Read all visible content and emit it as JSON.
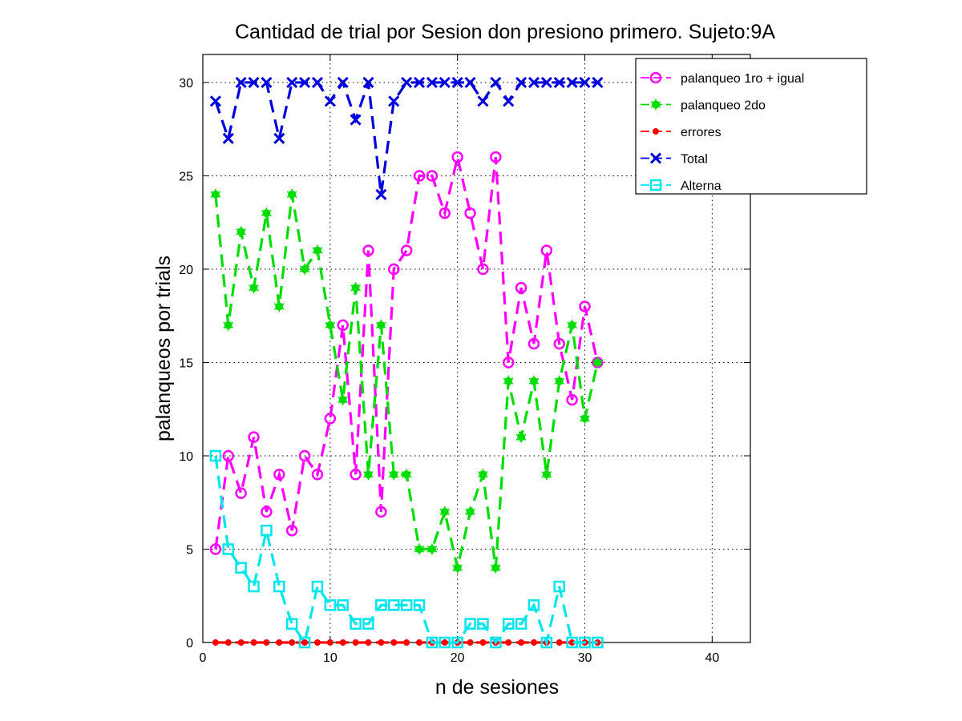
{
  "chart_data": {
    "type": "line",
    "title": "Cantidad de trial por Sesion don presiono primero. Sujeto:9A",
    "xlabel": "n de sesiones",
    "ylabel": "palanqueos por trials",
    "xlim": [
      0,
      43
    ],
    "ylim": [
      0,
      31.5
    ],
    "xticks": [
      0,
      10,
      20,
      30,
      40
    ],
    "yticks": [
      0,
      5,
      10,
      15,
      20,
      25,
      30
    ],
    "grid": true,
    "legend_position": "top-right",
    "x": [
      1,
      2,
      3,
      4,
      5,
      6,
      7,
      8,
      9,
      10,
      11,
      12,
      13,
      14,
      15,
      16,
      17,
      18,
      19,
      20,
      21,
      22,
      23,
      24,
      25,
      26,
      27,
      28,
      29,
      30,
      31
    ],
    "series": [
      {
        "name": "palanqueo 1ro + igual",
        "color": "#ff00ff",
        "marker": "circle",
        "values": [
          5,
          10,
          8,
          11,
          7,
          9,
          6,
          10,
          9,
          12,
          17,
          9,
          21,
          7,
          20,
          21,
          25,
          25,
          23,
          26,
          23,
          20,
          26,
          15,
          19,
          16,
          21,
          16,
          13,
          18,
          15
        ]
      },
      {
        "name": "palanqueo 2do",
        "color": "#00dd00",
        "marker": "asterisk",
        "values": [
          24,
          17,
          22,
          19,
          23,
          18,
          24,
          20,
          21,
          17,
          13,
          19,
          9,
          17,
          9,
          9,
          5,
          5,
          7,
          4,
          7,
          9,
          4,
          14,
          11,
          14,
          9,
          14,
          17,
          12,
          15
        ]
      },
      {
        "name": "errores",
        "color": "#ff0000",
        "marker": "dot",
        "values": [
          0,
          0,
          0,
          0,
          0,
          0,
          0,
          0,
          0,
          0,
          0,
          0,
          0,
          0,
          0,
          0,
          0,
          0,
          0,
          0,
          0,
          0,
          0,
          0,
          0,
          0,
          0,
          0,
          0,
          0,
          0
        ]
      },
      {
        "name": "Total",
        "color": "#0000dd",
        "marker": "x",
        "values": [
          29,
          27,
          30,
          30,
          30,
          27,
          30,
          30,
          30,
          29,
          30,
          28,
          30,
          24,
          29,
          30,
          30,
          30,
          30,
          30,
          30,
          29,
          30,
          29,
          30,
          30,
          30,
          30,
          30,
          30,
          30
        ]
      },
      {
        "name": "Alterna",
        "color": "#00e5ee",
        "marker": "square",
        "values": [
          10,
          5,
          4,
          3,
          6,
          3,
          1,
          0,
          3,
          2,
          2,
          1,
          1,
          2,
          2,
          2,
          2,
          0,
          0,
          0,
          1,
          1,
          0,
          1,
          1,
          2,
          0,
          3,
          0,
          0,
          0
        ]
      }
    ]
  }
}
